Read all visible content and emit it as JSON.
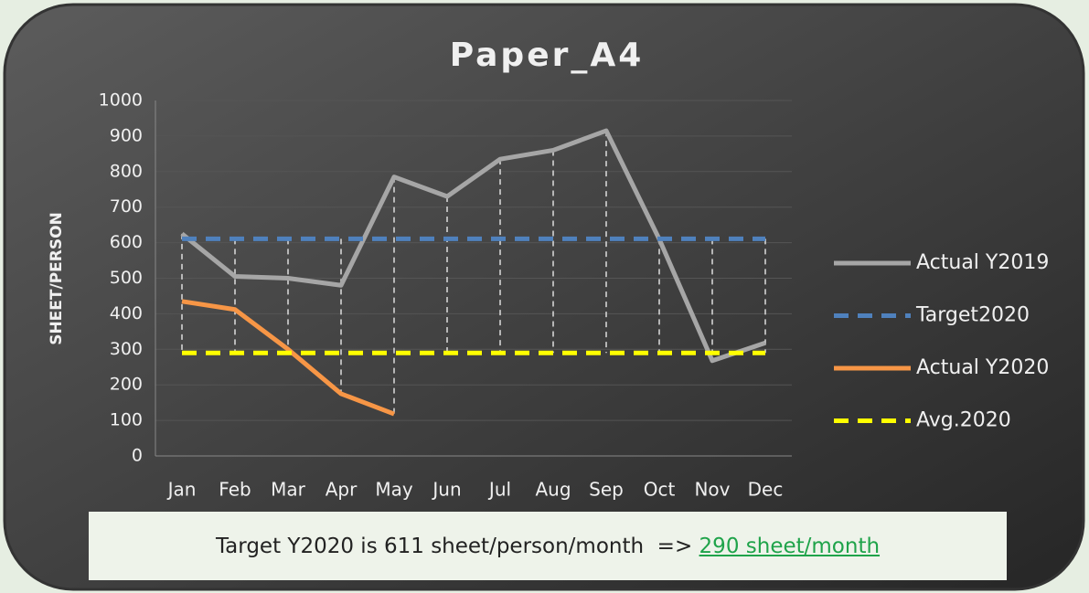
{
  "chart_data": {
    "type": "line",
    "title": "Paper_A4",
    "y_label": "SHEET/PERSON",
    "categories": [
      "Jan",
      "Feb",
      "Mar",
      "Apr",
      "May",
      "Jun",
      "Jul",
      "Aug",
      "Sep",
      "Oct",
      "Nov",
      "Dec"
    ],
    "series": [
      {
        "name": "Actual Y2019",
        "color": "#a6a6a6",
        "dashed": false,
        "values": [
          625,
          505,
          500,
          480,
          785,
          730,
          835,
          860,
          915,
          610,
          268,
          318
        ]
      },
      {
        "name": "Target2020",
        "color": "#4f81bd",
        "dashed": true,
        "values": [
          611,
          611,
          611,
          611,
          611,
          611,
          611,
          611,
          611,
          611,
          611,
          611
        ]
      },
      {
        "name": "Actual Y2020",
        "color": "#f79646",
        "dashed": false,
        "values": [
          435,
          412,
          300,
          175,
          118,
          null,
          null,
          null,
          null,
          null,
          null,
          null
        ]
      },
      {
        "name": "Avg.2020",
        "color": "#ffff00",
        "dashed": true,
        "values": [
          290,
          290,
          290,
          290,
          290,
          290,
          290,
          290,
          290,
          290,
          290,
          290
        ]
      }
    ],
    "ylim": [
      0,
      1000
    ],
    "yticks": [
      0,
      100,
      200,
      300,
      400,
      500,
      600,
      700,
      800,
      900,
      1000
    ],
    "grid": true,
    "drop_lines": true,
    "legend": "right",
    "annotations": [
      "Target Y2020 is 611 sheet/person/month  =>",
      "290 sheet/month"
    ]
  }
}
